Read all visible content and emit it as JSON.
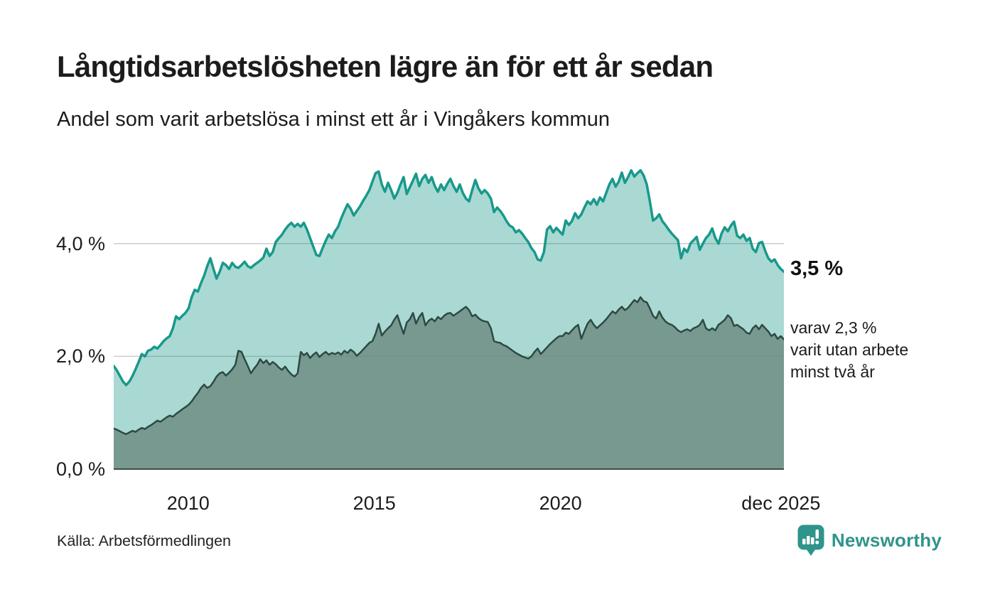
{
  "header": {
    "title": "Långtidsarbetslösheten lägre än för ett år sedan",
    "subtitle": "Andel som varit arbetslösa i minst ett år i Vingåkers kommun"
  },
  "chart_data": {
    "type": "area",
    "unit": "%",
    "x_unit": "month",
    "x_range": [
      "2008-01",
      "2025-12"
    ],
    "x_start_year": 2008,
    "x_span_years": 18,
    "ylim": [
      0,
      5.42
    ],
    "grid_on": true,
    "grid_values": [
      2,
      4
    ],
    "y_ticks": [
      {
        "label": "0,0 %",
        "value": 0
      },
      {
        "label": "2,0 %",
        "value": 2
      },
      {
        "label": "4,0 %",
        "value": 4
      }
    ],
    "x_ticks": [
      {
        "label": "2010",
        "year": 2010
      },
      {
        "label": "2015",
        "year": 2015
      },
      {
        "label": "2020",
        "year": 2020
      },
      {
        "label": "dec 2025",
        "year": 2025.92
      }
    ],
    "series": [
      {
        "name": "Arbetslösa minst ett år",
        "line_color": "#18998b",
        "fill_color": "rgba(24,153,139,0.37)",
        "line_width": 3.5,
        "latest_value": 3.5,
        "values": [
          1.83,
          1.75,
          1.65,
          1.55,
          1.49,
          1.55,
          1.65,
          1.77,
          1.9,
          2.04,
          2.0,
          2.1,
          2.12,
          2.17,
          2.14,
          2.2,
          2.27,
          2.32,
          2.36,
          2.5,
          2.71,
          2.66,
          2.72,
          2.77,
          2.85,
          3.05,
          3.18,
          3.15,
          3.3,
          3.43,
          3.6,
          3.74,
          3.55,
          3.38,
          3.5,
          3.66,
          3.62,
          3.55,
          3.66,
          3.59,
          3.57,
          3.62,
          3.68,
          3.6,
          3.57,
          3.62,
          3.66,
          3.7,
          3.75,
          3.91,
          3.78,
          3.85,
          4.03,
          4.1,
          4.16,
          4.25,
          4.32,
          4.37,
          4.3,
          4.35,
          4.3,
          4.37,
          4.25,
          4.1,
          3.95,
          3.8,
          3.78,
          3.92,
          4.05,
          4.16,
          4.1,
          4.22,
          4.3,
          4.45,
          4.58,
          4.7,
          4.62,
          4.5,
          4.58,
          4.66,
          4.76,
          4.85,
          4.95,
          5.1,
          5.25,
          5.28,
          5.05,
          4.92,
          5.08,
          4.95,
          4.8,
          4.9,
          5.05,
          5.18,
          4.88,
          5.0,
          5.12,
          5.24,
          5.02,
          5.15,
          5.22,
          5.08,
          5.18,
          5.02,
          4.92,
          5.05,
          4.95,
          5.06,
          5.15,
          5.02,
          4.92,
          5.05,
          4.9,
          4.8,
          4.75,
          4.95,
          5.13,
          4.98,
          4.89,
          4.95,
          4.89,
          4.8,
          4.56,
          4.64,
          4.58,
          4.5,
          4.4,
          4.32,
          4.29,
          4.2,
          4.24,
          4.18,
          4.1,
          4.03,
          3.92,
          3.85,
          3.72,
          3.7,
          3.85,
          4.25,
          4.31,
          4.2,
          4.28,
          4.22,
          4.16,
          4.41,
          4.33,
          4.4,
          4.54,
          4.45,
          4.52,
          4.64,
          4.75,
          4.7,
          4.79,
          4.69,
          4.82,
          4.75,
          4.9,
          5.05,
          5.15,
          5.01,
          5.1,
          5.26,
          5.08,
          5.18,
          5.3,
          5.19,
          5.25,
          5.3,
          5.21,
          5.05,
          4.75,
          4.41,
          4.45,
          4.52,
          4.4,
          4.33,
          4.25,
          4.18,
          4.12,
          4.06,
          3.74,
          3.91,
          3.85,
          4.0,
          4.06,
          4.12,
          3.89,
          4.0,
          4.1,
          4.16,
          4.27,
          4.1,
          4.0,
          4.18,
          4.29,
          4.22,
          4.32,
          4.39,
          4.14,
          4.1,
          4.16,
          4.05,
          4.1,
          3.91,
          3.85,
          4.01,
          4.03,
          3.87,
          3.74,
          3.68,
          3.72,
          3.62,
          3.55,
          3.5
        ]
      },
      {
        "name": "varav arbetslösa minst två år",
        "line_color": "#2c4a43",
        "fill_color": "#78998f",
        "line_width": 2.5,
        "latest_value": 2.3,
        "values": [
          0.72,
          0.7,
          0.67,
          0.64,
          0.62,
          0.65,
          0.68,
          0.66,
          0.7,
          0.73,
          0.71,
          0.75,
          0.78,
          0.82,
          0.86,
          0.84,
          0.88,
          0.92,
          0.95,
          0.93,
          0.98,
          1.02,
          1.06,
          1.1,
          1.14,
          1.2,
          1.28,
          1.35,
          1.44,
          1.5,
          1.44,
          1.47,
          1.55,
          1.64,
          1.7,
          1.72,
          1.66,
          1.71,
          1.77,
          1.85,
          2.1,
          2.08,
          1.95,
          1.83,
          1.7,
          1.78,
          1.85,
          1.95,
          1.88,
          1.93,
          1.85,
          1.9,
          1.86,
          1.8,
          1.76,
          1.82,
          1.74,
          1.68,
          1.64,
          1.7,
          2.08,
          2.02,
          2.06,
          1.97,
          2.03,
          2.07,
          1.99,
          2.04,
          2.08,
          2.03,
          2.06,
          2.04,
          2.07,
          2.03,
          2.1,
          2.06,
          2.12,
          2.08,
          2.01,
          2.06,
          2.12,
          2.18,
          2.24,
          2.27,
          2.4,
          2.58,
          2.37,
          2.44,
          2.5,
          2.55,
          2.65,
          2.73,
          2.56,
          2.4,
          2.6,
          2.66,
          2.77,
          2.58,
          2.7,
          2.77,
          2.55,
          2.63,
          2.67,
          2.62,
          2.7,
          2.66,
          2.72,
          2.76,
          2.77,
          2.72,
          2.76,
          2.8,
          2.84,
          2.88,
          2.82,
          2.71,
          2.74,
          2.68,
          2.64,
          2.62,
          2.61,
          2.5,
          2.27,
          2.25,
          2.24,
          2.2,
          2.18,
          2.14,
          2.1,
          2.06,
          2.03,
          2.0,
          1.98,
          1.96,
          2.0,
          2.08,
          2.14,
          2.04,
          2.1,
          2.16,
          2.22,
          2.27,
          2.32,
          2.36,
          2.36,
          2.42,
          2.4,
          2.46,
          2.52,
          2.56,
          2.31,
          2.45,
          2.58,
          2.65,
          2.56,
          2.5,
          2.55,
          2.6,
          2.66,
          2.73,
          2.8,
          2.76,
          2.83,
          2.88,
          2.82,
          2.86,
          2.93,
          3.0,
          2.96,
          3.05,
          2.98,
          2.96,
          2.85,
          2.72,
          2.67,
          2.8,
          2.69,
          2.62,
          2.58,
          2.56,
          2.52,
          2.46,
          2.43,
          2.46,
          2.48,
          2.45,
          2.5,
          2.52,
          2.56,
          2.65,
          2.5,
          2.46,
          2.5,
          2.46,
          2.56,
          2.6,
          2.65,
          2.73,
          2.68,
          2.54,
          2.56,
          2.52,
          2.48,
          2.42,
          2.4,
          2.5,
          2.55,
          2.48,
          2.56,
          2.5,
          2.44,
          2.36,
          2.4,
          2.31,
          2.36,
          2.3
        ]
      }
    ],
    "annotations": {
      "latest_value_label": "3,5 %",
      "secondary_note_lines": [
        "varav 2,3 %",
        "varit utan arbete",
        "minst två år"
      ]
    }
  },
  "footer": {
    "source": "Källa: Arbetsförmedlingen",
    "brand": "Newsworthy"
  },
  "colors": {
    "accent_teal": "#18998b",
    "light_fill": "#aad9d4",
    "dark_fill": "#78998f",
    "dark_line": "#2c4a43",
    "gridline": "#d9d9d9",
    "baseline": "#3c4a46",
    "brand_teal": "#2f948a",
    "text": "#1c1c1c"
  }
}
